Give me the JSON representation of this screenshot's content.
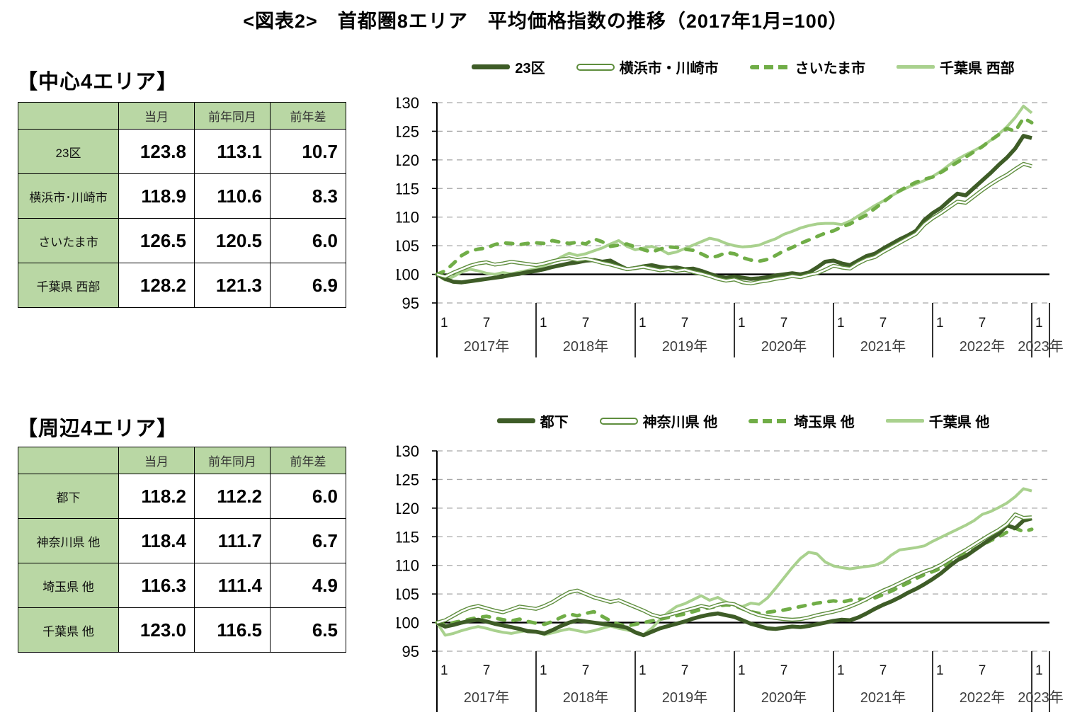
{
  "title": "<図表2>　首都圏8エリア　平均価格指数の推移（2017年1月=100）",
  "colors": {
    "dark_green": "#3e5c27",
    "outlined_green": "#5f8e3e",
    "dashed_green": "#70ad47",
    "light_green": "#a9d18e",
    "table_header_bg": "#b9d7a4",
    "grid_gray": "#a6a6a6",
    "baseline": "#000000",
    "year_label_gray": "#3f3f3f"
  },
  "tables": [
    {
      "heading": "【中心4エリア】",
      "columns": [
        "当月",
        "前年同月",
        "前年差"
      ],
      "rows": [
        {
          "label": "23区",
          "values": [
            "123.8",
            "113.1",
            "10.7"
          ]
        },
        {
          "label": "横浜市･川崎市",
          "values": [
            "118.9",
            "110.6",
            "8.3"
          ]
        },
        {
          "label": "さいたま市",
          "values": [
            "126.5",
            "120.5",
            "6.0"
          ]
        },
        {
          "label": "千葉県 西部",
          "values": [
            "128.2",
            "121.3",
            "6.9"
          ]
        }
      ]
    },
    {
      "heading": "【周辺4エリア】",
      "columns": [
        "当月",
        "前年同月",
        "前年差"
      ],
      "rows": [
        {
          "label": "都下",
          "values": [
            "118.2",
            "112.2",
            "6.0"
          ]
        },
        {
          "label": "神奈川県 他",
          "values": [
            "118.4",
            "111.7",
            "6.7"
          ]
        },
        {
          "label": "埼玉県 他",
          "values": [
            "116.3",
            "111.4",
            "4.9"
          ]
        },
        {
          "label": "千葉県 他",
          "values": [
            "123.0",
            "116.5",
            "6.5"
          ]
        }
      ]
    }
  ],
  "chart_data": [
    {
      "type": "line",
      "group": "中心4エリア",
      "x_start": "2017-01",
      "x_end": "2023-01",
      "x_points": 73,
      "ylim": [
        95,
        130
      ],
      "ytick_step": 5,
      "baseline_value": 100,
      "month_tick_labels": [
        "1",
        "7"
      ],
      "year_labels": [
        "2017年",
        "2018年",
        "2019年",
        "2020年",
        "2021年",
        "2022年",
        "2023年"
      ],
      "grid": "horizontal-dashed",
      "legend_position": "top",
      "series": [
        {
          "name": "23区",
          "style": "solid-thick",
          "color": "#3e5c27",
          "values": [
            100,
            99.2,
            98.7,
            98.6,
            98.8,
            99.0,
            99.2,
            99.4,
            99.6,
            99.9,
            100.1,
            100.4,
            100.6,
            100.9,
            101.3,
            101.6,
            101.9,
            102.1,
            102.4,
            102.5,
            102.2,
            102.4,
            101.6,
            100.9,
            101.1,
            101.4,
            101.6,
            101.3,
            101.1,
            101.2,
            100.9,
            101.0,
            100.6,
            100.1,
            99.6,
            99.4,
            99.6,
            99.4,
            99.2,
            99.3,
            99.5,
            99.8,
            100.0,
            100.2,
            100.0,
            100.3,
            101.2,
            102.2,
            102.4,
            101.9,
            101.6,
            102.4,
            103.2,
            103.6,
            104.5,
            105.3,
            106.1,
            106.8,
            107.6,
            109.5,
            110.7,
            111.6,
            112.9,
            114.1,
            113.8,
            115.1,
            116.4,
            117.7,
            119.1,
            120.4,
            122.0,
            124.2,
            123.8
          ]
        },
        {
          "name": "横浜市・川崎市",
          "style": "outlined",
          "color": "#5f8e3e",
          "values": [
            100,
            99.6,
            100.3,
            100.9,
            101.5,
            101.9,
            102.1,
            101.7,
            101.9,
            102.2,
            102.0,
            101.8,
            101.6,
            101.9,
            102.3,
            102.6,
            102.8,
            102.5,
            102.7,
            102.4,
            102.0,
            101.7,
            101.3,
            100.9,
            101.1,
            101.3,
            101.0,
            100.7,
            100.9,
            100.6,
            100.8,
            100.4,
            100.1,
            99.7,
            99.2,
            98.9,
            99.1,
            98.6,
            98.4,
            98.7,
            98.9,
            99.2,
            99.4,
            99.7,
            99.5,
            99.9,
            100.2,
            100.8,
            101.5,
            101.2,
            101.0,
            101.9,
            102.6,
            103.0,
            103.9,
            104.7,
            105.5,
            106.3,
            107.1,
            108.7,
            109.8,
            110.7,
            111.7,
            112.7,
            112.5,
            113.6,
            114.7,
            115.7,
            116.6,
            117.4,
            118.4,
            119.3,
            118.9
          ]
        },
        {
          "name": "さいたま市",
          "style": "dashed",
          "color": "#70ad47",
          "values": [
            100,
            100.6,
            101.9,
            103.3,
            104.1,
            104.4,
            104.6,
            105.2,
            105.5,
            105.4,
            105.2,
            105.4,
            105.5,
            105.4,
            105.9,
            105.6,
            105.4,
            105.6,
            105.3,
            106.2,
            105.7,
            104.9,
            105.1,
            105.3,
            104.8,
            104.3,
            103.9,
            104.4,
            104.8,
            104.7,
            104.4,
            104.2,
            103.6,
            102.9,
            103.2,
            103.8,
            103.6,
            102.9,
            102.5,
            102.3,
            102.6,
            103.3,
            104.1,
            104.7,
            105.4,
            106.0,
            106.6,
            107.2,
            107.6,
            108.3,
            108.8,
            109.6,
            110.4,
            111.5,
            112.6,
            113.7,
            114.6,
            115.4,
            116.1,
            116.6,
            117.0,
            117.8,
            118.7,
            119.6,
            120.5,
            121.4,
            122.3,
            123.4,
            124.4,
            125.5,
            125.0,
            127.3,
            126.5
          ]
        },
        {
          "name": "千葉県 西部",
          "style": "solid-thin",
          "color": "#a9d18e",
          "values": [
            100,
            99.0,
            99.6,
            100.4,
            100.9,
            100.6,
            100.2,
            100.0,
            100.3,
            100.1,
            100.4,
            100.7,
            101.0,
            101.5,
            102.1,
            103.0,
            103.7,
            103.3,
            103.6,
            104.1,
            104.6,
            105.3,
            105.9,
            104.9,
            104.3,
            104.6,
            104.9,
            104.4,
            103.6,
            103.9,
            104.5,
            105.1,
            105.7,
            106.3,
            106.0,
            105.4,
            105.0,
            104.8,
            104.9,
            105.1,
            105.7,
            106.2,
            107.0,
            107.5,
            108.1,
            108.5,
            108.8,
            108.9,
            108.9,
            108.7,
            109.3,
            110.2,
            111.1,
            112.0,
            112.8,
            113.7,
            114.5,
            115.2,
            115.8,
            116.4,
            117.1,
            118.0,
            119.1,
            120.1,
            120.9,
            121.6,
            122.4,
            123.4,
            124.5,
            125.8,
            127.4,
            129.4,
            128.2
          ]
        }
      ]
    },
    {
      "type": "line",
      "group": "周辺4エリア",
      "x_start": "2017-01",
      "x_end": "2023-01",
      "x_points": 73,
      "ylim": [
        95,
        130
      ],
      "ytick_step": 5,
      "baseline_value": 100,
      "month_tick_labels": [
        "1",
        "7"
      ],
      "year_labels": [
        "2017年",
        "2018年",
        "2019年",
        "2020年",
        "2021年",
        "2022年",
        "2023年"
      ],
      "grid": "horizontal-dashed",
      "legend_position": "top",
      "series": [
        {
          "name": "都下",
          "style": "solid-thick",
          "color": "#3e5c27",
          "values": [
            100,
            99.3,
            99.6,
            100.0,
            100.3,
            100.5,
            100.2,
            99.8,
            99.5,
            99.2,
            98.9,
            98.5,
            98.4,
            98.1,
            98.7,
            99.4,
            100.0,
            100.4,
            100.2,
            100.0,
            99.8,
            99.6,
            99.4,
            99.1,
            98.3,
            97.8,
            98.4,
            99.0,
            99.4,
            99.8,
            100.2,
            100.7,
            101.1,
            101.4,
            101.6,
            101.3,
            101.0,
            100.4,
            99.8,
            99.4,
            99.0,
            98.9,
            99.1,
            99.3,
            99.2,
            99.4,
            99.7,
            100.0,
            100.3,
            100.5,
            100.4,
            100.9,
            101.6,
            102.4,
            103.1,
            103.7,
            104.4,
            105.2,
            105.9,
            106.7,
            107.6,
            108.6,
            109.8,
            110.9,
            111.6,
            112.6,
            113.6,
            114.6,
            115.5,
            117.0,
            116.5,
            117.8,
            118.2
          ]
        },
        {
          "name": "神奈川県 他",
          "style": "outlined",
          "color": "#5f8e3e",
          "values": [
            100,
            100.4,
            101.2,
            102.0,
            102.6,
            102.9,
            102.5,
            102.1,
            101.8,
            102.3,
            102.8,
            102.6,
            102.4,
            102.9,
            103.6,
            104.5,
            105.3,
            105.6,
            105.0,
            104.4,
            104.0,
            103.6,
            103.9,
            103.3,
            102.7,
            102.1,
            101.4,
            101.0,
            101.3,
            101.7,
            102.1,
            102.5,
            102.9,
            102.6,
            103.1,
            103.4,
            103.2,
            102.5,
            101.8,
            101.3,
            101.0,
            100.8,
            100.6,
            100.5,
            100.6,
            100.9,
            101.3,
            101.6,
            101.9,
            102.3,
            102.8,
            103.4,
            104.1,
            104.9,
            105.6,
            106.2,
            106.9,
            107.6,
            108.3,
            108.9,
            109.4,
            110.1,
            111.0,
            111.9,
            112.7,
            113.6,
            114.5,
            115.4,
            116.2,
            117.2,
            118.9,
            118.3,
            118.4
          ]
        },
        {
          "name": "埼玉県 他",
          "style": "dashed",
          "color": "#70ad47",
          "values": [
            100,
            99.6,
            100.0,
            100.3,
            100.6,
            100.9,
            101.1,
            100.8,
            100.5,
            100.3,
            100.6,
            100.2,
            99.9,
            99.7,
            100.2,
            100.9,
            101.5,
            101.2,
            101.6,
            101.9,
            101.1,
            100.3,
            99.7,
            99.4,
            99.7,
            100.0,
            100.3,
            100.6,
            100.9,
            101.2,
            101.5,
            101.9,
            102.3,
            102.6,
            102.9,
            103.1,
            103.0,
            102.4,
            101.9,
            101.6,
            101.8,
            102.0,
            102.2,
            102.5,
            102.8,
            103.1,
            103.4,
            103.6,
            103.8,
            103.6,
            103.9,
            104.1,
            104.0,
            104.3,
            104.9,
            105.5,
            106.2,
            106.9,
            107.7,
            108.4,
            108.9,
            109.5,
            110.3,
            111.2,
            112.0,
            112.8,
            113.6,
            114.3,
            115.0,
            115.8,
            116.5,
            115.9,
            116.3
          ]
        },
        {
          "name": "千葉県 他",
          "style": "solid-thin",
          "color": "#a9d18e",
          "values": [
            100,
            97.8,
            98.1,
            98.6,
            99.0,
            99.3,
            99.0,
            98.6,
            98.3,
            98.1,
            98.4,
            98.6,
            98.4,
            97.9,
            98.2,
            98.6,
            98.9,
            98.6,
            98.3,
            98.6,
            99.0,
            99.4,
            99.0,
            98.7,
            98.4,
            97.9,
            99.0,
            100.5,
            101.8,
            102.8,
            103.3,
            104.0,
            104.7,
            103.9,
            104.4,
            103.6,
            103.0,
            102.8,
            103.4,
            103.2,
            104.3,
            106.0,
            107.8,
            109.6,
            111.2,
            112.3,
            112.0,
            110.6,
            109.9,
            109.6,
            109.4,
            109.6,
            109.8,
            110.0,
            110.6,
            111.8,
            112.7,
            112.9,
            113.1,
            113.4,
            114.2,
            114.9,
            115.6,
            116.3,
            117.0,
            117.8,
            118.9,
            119.4,
            120.1,
            120.9,
            122.0,
            123.4,
            123.0
          ]
        }
      ]
    }
  ]
}
